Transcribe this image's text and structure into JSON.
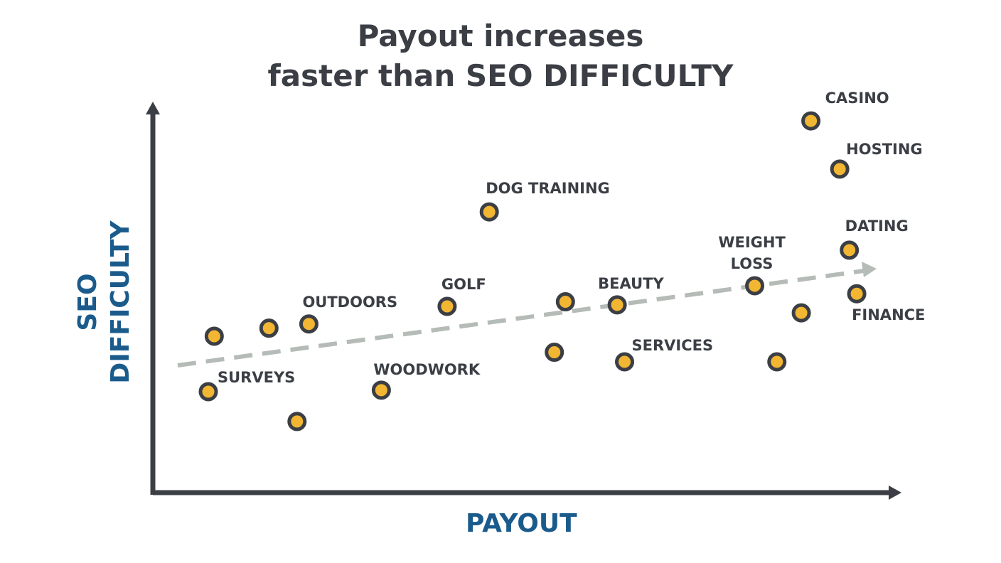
{
  "chart_data": {
    "type": "scatter",
    "title": [
      "Payout increases",
      "faster than SEO DIFFICULTY"
    ],
    "x_label": "PAYOUT",
    "y_label": [
      "SEO",
      "DIFFICULTY"
    ],
    "x": [
      8.3,
      15.7,
      21.1,
      7.5,
      19.5,
      30.9,
      39.8,
      45.5,
      55.8,
      54.3,
      62.8,
      63.8,
      81.4,
      84.4,
      87.7,
      89.0,
      92.9,
      94.2,
      95.2
    ],
    "values": [
      40.9,
      43.0,
      44.1,
      26.4,
      18.6,
      26.8,
      48.7,
      73.4,
      49.9,
      36.7,
      49.1,
      34.2,
      54.1,
      34.2,
      47.0,
      97.2,
      84.6,
      63.4,
      52.0
    ],
    "labels": [
      null,
      null,
      "OUTDOORS",
      "SURVEYS",
      null,
      "WOODWORK",
      "GOLF",
      "DOG TRAINING",
      null,
      null,
      "BEAUTY",
      "SERVICES",
      "WEIGHT LOSS",
      null,
      null,
      "CASINO",
      "HOSTING",
      "DATING",
      "FINANCE"
    ],
    "color": "#f2b632",
    "xlim": [
      0,
      100
    ],
    "ylim": [
      0,
      100
    ]
  }
}
